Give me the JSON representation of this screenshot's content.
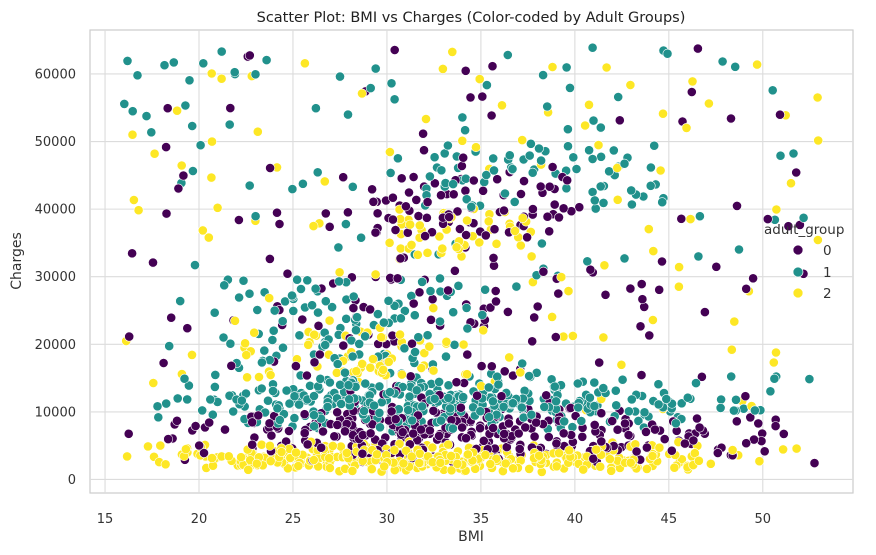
{
  "chart_data": {
    "type": "scatter",
    "title": "Scatter Plot: BMI vs Charges (Color-coded by Adult Groups)",
    "xlabel": "BMI",
    "ylabel": "Charges",
    "xlim": [
      14.2,
      54.8
    ],
    "ylim": [
      -2000,
      66500
    ],
    "xticks": [
      15,
      20,
      25,
      30,
      35,
      40,
      45,
      50
    ],
    "yticks": [
      0,
      10000,
      20000,
      30000,
      40000,
      50000,
      60000
    ],
    "grid": true,
    "legend": {
      "title": "adult_group",
      "placement": "right",
      "entries": [
        "0",
        "1",
        "2"
      ]
    },
    "series": [
      {
        "name": "0",
        "color": "#440154",
        "clusters": [
          {
            "x": [
              16,
              53
            ],
            "y": [
              2000,
              12000
            ],
            "n": 330,
            "xmode": 30,
            "ymode": 7000
          },
          {
            "x": [
              16,
              53
            ],
            "y": [
              12000,
              30000
            ],
            "n": 95,
            "xmode": 31
          },
          {
            "x": [
              29,
              40
            ],
            "y": [
              36000,
              45000
            ],
            "n": 70
          },
          {
            "x": [
              16,
              53
            ],
            "y": [
              30000,
              64000
            ],
            "n": 65
          }
        ]
      },
      {
        "name": "1",
        "color": "#21918c",
        "clusters": [
          {
            "x": [
              16,
              53
            ],
            "y": [
              7000,
              16000
            ],
            "n": 350,
            "xmode": 32,
            "ymode": 11500
          },
          {
            "x": [
              17,
              38
            ],
            "y": [
              16000,
              30000
            ],
            "n": 110,
            "xmode": 27
          },
          {
            "x": [
              32,
              45
            ],
            "y": [
              40000,
              50000
            ],
            "n": 60
          },
          {
            "x": [
              16,
              53
            ],
            "y": [
              30000,
              64000
            ],
            "n": 85
          }
        ]
      },
      {
        "name": "2",
        "color": "#fde725",
        "clusters": [
          {
            "x": [
              16,
              53
            ],
            "y": [
              1000,
              6000
            ],
            "n": 380,
            "xmode": 30,
            "ymode": 2800
          },
          {
            "x": [
              20,
              35
            ],
            "y": [
              15000,
              22000
            ],
            "n": 55,
            "xmode": 29
          },
          {
            "x": [
              30,
              38
            ],
            "y": [
              33000,
              40000
            ],
            "n": 45
          },
          {
            "x": [
              16,
              53
            ],
            "y": [
              10000,
              64000
            ],
            "n": 105
          }
        ]
      }
    ]
  }
}
